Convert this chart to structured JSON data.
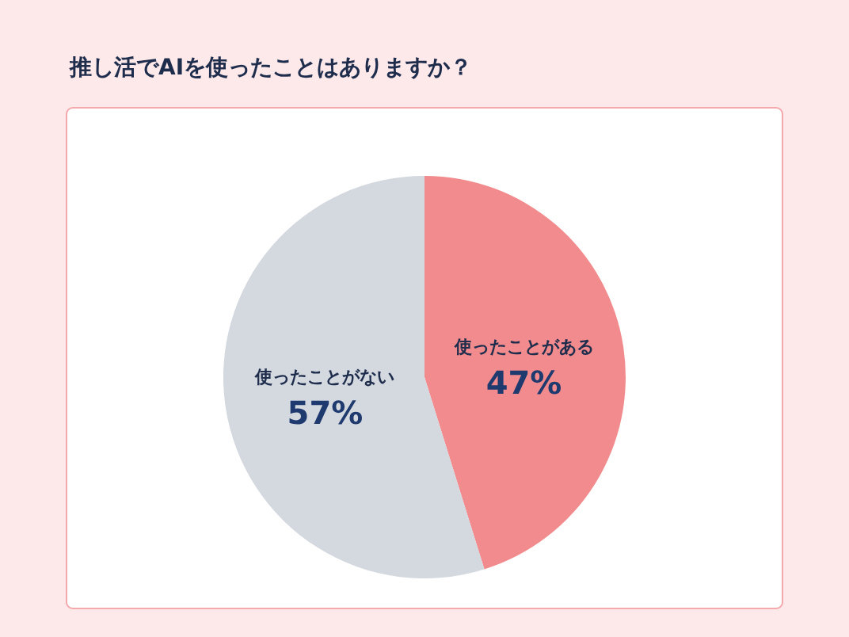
{
  "chart_data": {
    "type": "pie",
    "title": "推し活でAIを使ったことはありますか？",
    "categories": [
      "使ったことがある",
      "使ったことがない"
    ],
    "values": [
      47,
      57
    ],
    "value_labels": [
      "47%",
      "57%"
    ],
    "colors": [
      "#f28b8d",
      "#d4d8df"
    ]
  }
}
